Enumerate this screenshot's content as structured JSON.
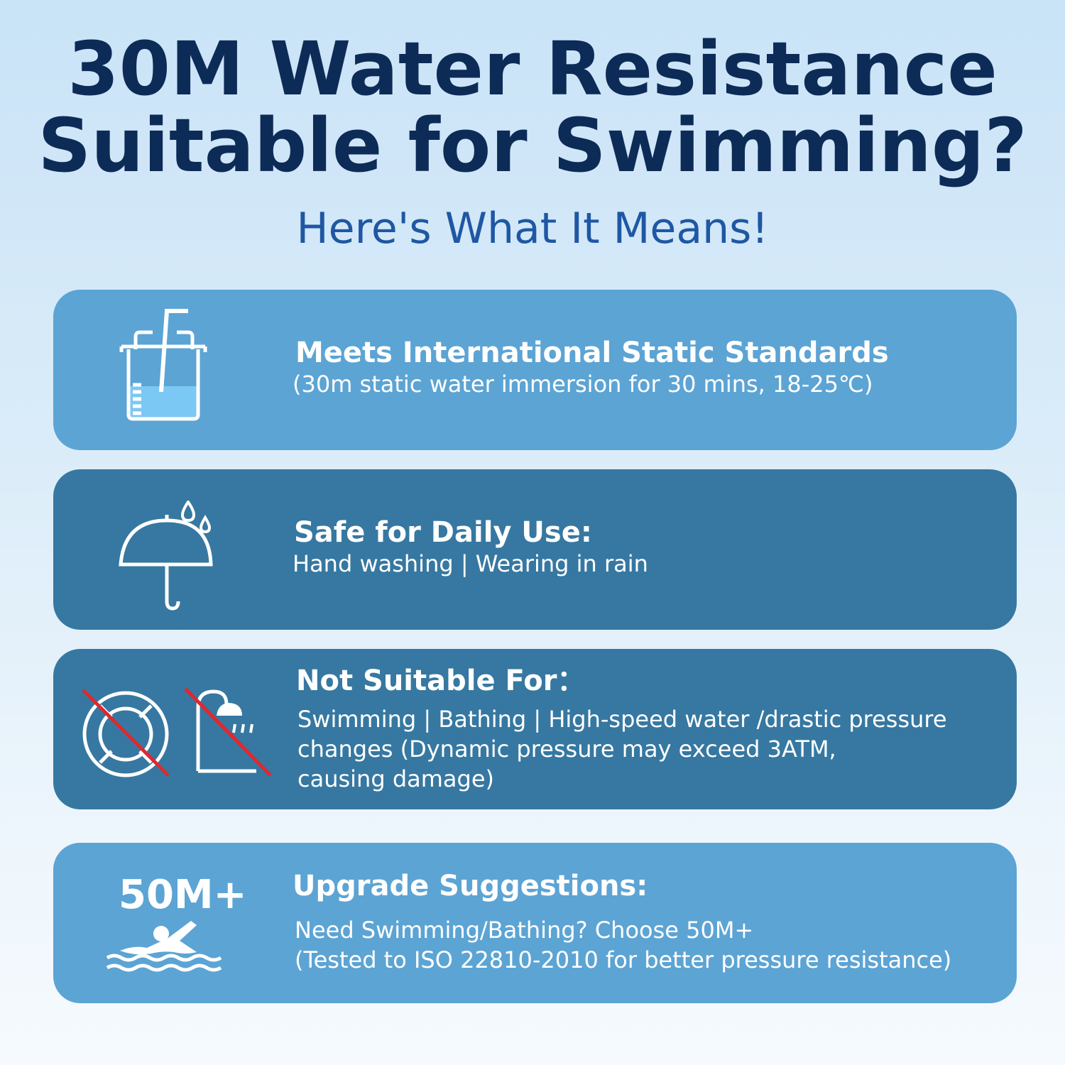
{
  "header": {
    "title_line1": "30M Water Resistance",
    "title_line2": "Suitable for Swimming?",
    "subtitle": "Here's What It Means!"
  },
  "cards": [
    {
      "icon": "beaker-icon",
      "title": "Meets International Static Standards",
      "lines": [
        "(30m static water immersion for 30 mins, 18-25℃)"
      ]
    },
    {
      "icon": "umbrella-rain-icon",
      "title": "Safe for Daily Use:",
      "lines": [
        "Hand washing | Wearing in rain"
      ]
    },
    {
      "icon": "no-swimming-no-shower-icon",
      "title": "Not Suitable For：",
      "lines": [
        "Swimming | Bathing | High-speed water /drastic pressure",
        "changes (Dynamic pressure may exceed 3ATM,",
        "causing damage)"
      ]
    },
    {
      "icon": "swimmer-icon",
      "badge": "50M+",
      "title": "Upgrade Suggestions:",
      "lines": [
        "Need Swimming/Bathing? Choose 50M+",
        "(Tested to ISO 22810-2010 for better pressure resistance)"
      ]
    }
  ],
  "colors": {
    "headline": "#0d2b57",
    "subtitle": "#1f57a3",
    "card_light": "#5ca4d4",
    "card_dark": "#3678a1",
    "prohibited_slash": "#e0282e"
  }
}
